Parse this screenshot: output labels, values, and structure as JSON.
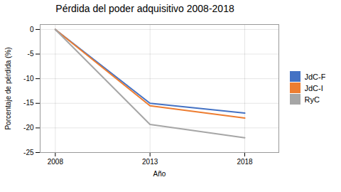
{
  "chart_data": {
    "type": "line",
    "title": "Pérdida del poder adquisitivo 2008-2018",
    "xlabel": "Año",
    "ylabel": "Porcentaje de pérdida (%)",
    "x": [
      2008,
      2013,
      2018
    ],
    "series": [
      {
        "name": "JdC-F",
        "color": "#4472C4",
        "values": [
          0,
          -15.0,
          -17.0
        ]
      },
      {
        "name": "JdC-I",
        "color": "#ED7D31",
        "values": [
          0,
          -15.5,
          -18.0
        ]
      },
      {
        "name": "RyC",
        "color": "#A6A6A6",
        "values": [
          0,
          -19.3,
          -22.0
        ]
      }
    ],
    "xlim": [
      2007.2,
      2019.8
    ],
    "xticks": [
      2008,
      2013,
      2018
    ],
    "ylim": [
      -25,
      1
    ],
    "yticks": [
      0,
      -5,
      -10,
      -15,
      -20,
      -25
    ],
    "grid": true,
    "legend": "right"
  }
}
